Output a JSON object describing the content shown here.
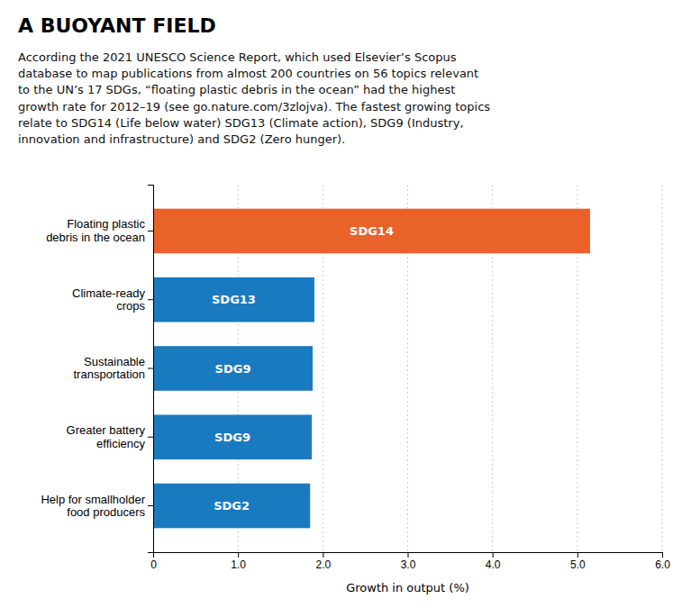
{
  "chart_data": {
    "type": "bar",
    "orientation": "horizontal",
    "title": "A BUOYANT FIELD",
    "subtitle": "According the 2021 UNESCO Science Report, which used Elsevier’s Scopus\ndatabase to map publications from almost 200 countries on 56 topics relevant\nto the UN’s 17 SDGs, “floating plastic debris in the ocean” had the highest\ngrowth rate for 2012–19 (see go.nature.com/3zlojva). The fastest growing topics\nrelate to SDG14 (Life below water) SDG13 (Climate action), SDG9 (Industry,\ninnovation and infrastructure) and SDG2 (Zero hunger).",
    "categories": [
      "Help for smallholder\nfood producers",
      "Greater battery\nefficiency",
      "Sustainable\ntransportation",
      "Climate-ready\ncrops",
      "Floating plastic\ndebris in the ocean"
    ],
    "values": [
      1.85,
      1.87,
      1.88,
      1.9,
      5.15
    ],
    "annotations": [
      "SDG2",
      "SDG9",
      "SDG9",
      "SDG13",
      "SDG14"
    ],
    "colors": [
      "#1a7abf",
      "#1a7abf",
      "#1a7abf",
      "#1a7abf",
      "#e8622a"
    ],
    "xlabel": "Growth in output (%)",
    "xlim": [
      0,
      6.0
    ],
    "xticks": [
      0,
      {
        "value": 1.0,
        "label": "1.0"
      },
      {
        "value": 2.0,
        "label": "2.0"
      },
      {
        "value": 3.0,
        "label": "3.0"
      },
      {
        "value": 4.0,
        "label": "4.0"
      },
      {
        "value": 5.0,
        "label": "5.0"
      },
      {
        "value": 6.0,
        "label": "6.0"
      }
    ],
    "grid": true
  }
}
